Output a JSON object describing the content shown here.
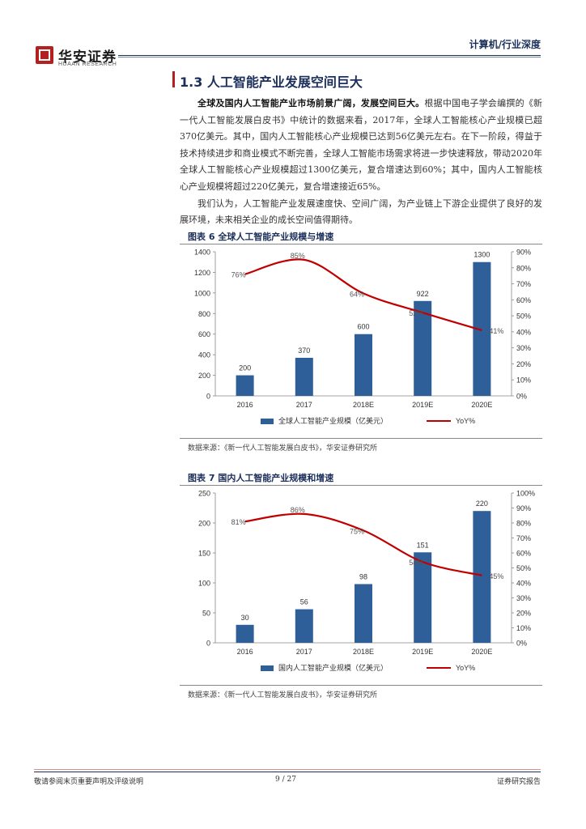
{
  "header": {
    "brand_cn": "华安证券",
    "brand_en": "HUAAN RESEARCH",
    "category": "计算机/行业深度"
  },
  "section": {
    "title": "1.3 人工智能产业发展空间巨大"
  },
  "body": {
    "lead_bold": "全球及国内人工智能产业市场前景广阔，发展空间巨大。",
    "paragraph1_rest": "根据中国电子学会编撰的《新一代人工智能发展白皮书》中统计的数据来看，2017年，全球人工智能核心产业规模已超370亿美元。其中，国内人工智能核心产业规模已达到56亿美元左右。在下一阶段，得益于技术持续进步和商业模式不断完善，全球人工智能市场需求将进一步快速释放，带动2020年全球人工智能核心产业规模超过1300亿美元，复合增速达到60%；其中，国内人工智能核心产业规模将超过220亿美元，复合增速接近65%。",
    "paragraph2": "我们认为，人工智能产业发展速度快、空间广阔，为产业链上下游企业提供了良好的发展环境，未来相关企业的成长空间值得期待。"
  },
  "figures": [
    {
      "title": "图表 6 全球人工智能产业规模与增速",
      "source": "数据来源：《新一代人工智能发展白皮书》，华安证券研究所"
    },
    {
      "title": "图表 7 国内人工智能产业规模和增速",
      "source": "数据来源：《新一代人工智能发展白皮书》，华安证券研究所"
    }
  ],
  "chart_data": [
    {
      "type": "bar",
      "categories": [
        "2016",
        "2017",
        "2018E",
        "2019E",
        "2020E"
      ],
      "series": [
        {
          "name": "全球人工智能产业规模（亿美元）",
          "type": "bar",
          "values": [
            200,
            370,
            600,
            922,
            1300
          ],
          "color": "#2e5f98",
          "labels": [
            "200",
            "370",
            "600",
            "922",
            "1300"
          ]
        },
        {
          "name": "YoY%",
          "type": "line",
          "axis": "right",
          "values": [
            76,
            85,
            64,
            52,
            41
          ],
          "color": "#c00000",
          "labels": [
            "76%",
            "85%",
            "64%",
            "52%",
            "41%"
          ]
        }
      ],
      "ylim_left": [
        0,
        1400
      ],
      "yticks_left": [
        "0",
        "200",
        "400",
        "600",
        "800",
        "1000",
        "1200",
        "1400"
      ],
      "ylim_right": [
        0,
        90
      ],
      "yticks_right": [
        "0%",
        "10%",
        "20%",
        "30%",
        "40%",
        "50%",
        "60%",
        "70%",
        "80%",
        "90%"
      ],
      "legend_position": "bottom"
    },
    {
      "type": "bar",
      "categories": [
        "2016",
        "2017",
        "2018E",
        "2019E",
        "2020E"
      ],
      "series": [
        {
          "name": "国内人工智能产业规模（亿美元）",
          "type": "bar",
          "values": [
            30,
            56,
            98,
            151,
            220
          ],
          "color": "#2e5f98",
          "labels": [
            "30",
            "56",
            "98",
            "151",
            "220"
          ]
        },
        {
          "name": "YoY%",
          "type": "line",
          "axis": "right",
          "values": [
            81,
            86,
            75,
            54,
            45
          ],
          "color": "#c00000",
          "labels": [
            "81%",
            "86%",
            "75%",
            "54%",
            "45%"
          ]
        }
      ],
      "ylim_left": [
        0,
        250
      ],
      "yticks_left": [
        "0",
        "50",
        "100",
        "150",
        "200",
        "250"
      ],
      "ylim_right": [
        0,
        100
      ],
      "yticks_right": [
        "0%",
        "10%",
        "20%",
        "30%",
        "40%",
        "50%",
        "60%",
        "70%",
        "80%",
        "90%",
        "100%"
      ],
      "legend_position": "bottom"
    }
  ],
  "footer": {
    "disclaimer": "敬请参阅末页重要声明及评级说明",
    "page": "9 / 27",
    "type": "证券研究报告"
  }
}
